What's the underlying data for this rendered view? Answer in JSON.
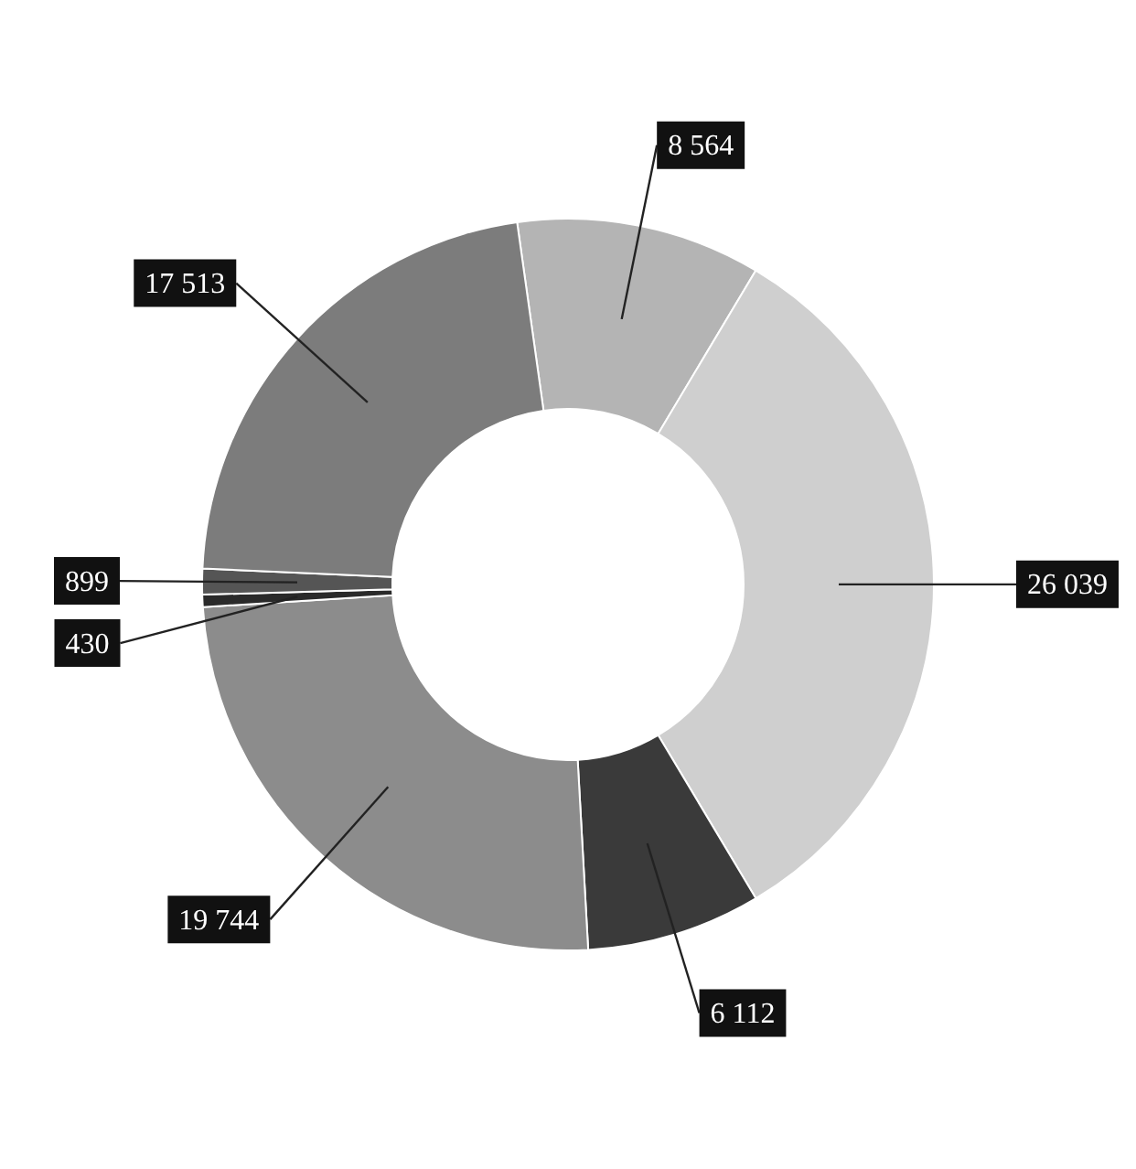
{
  "chart_data": {
    "type": "donut",
    "categories": [
      null,
      null,
      null,
      null,
      null,
      null,
      null
    ],
    "values": [
      8564,
      26039,
      6112,
      19744,
      430,
      899,
      17513
    ],
    "value_labels": [
      "8 564",
      "26 039",
      "6 112",
      "19 744",
      "430",
      "899",
      "17 513"
    ],
    "colors": [
      "#b4b4b4",
      "#cfcfcf",
      "#3a3a3a",
      "#8c8c8c",
      "#2a2a2a",
      "#555555",
      "#7c7c7c"
    ],
    "legend": false
  }
}
